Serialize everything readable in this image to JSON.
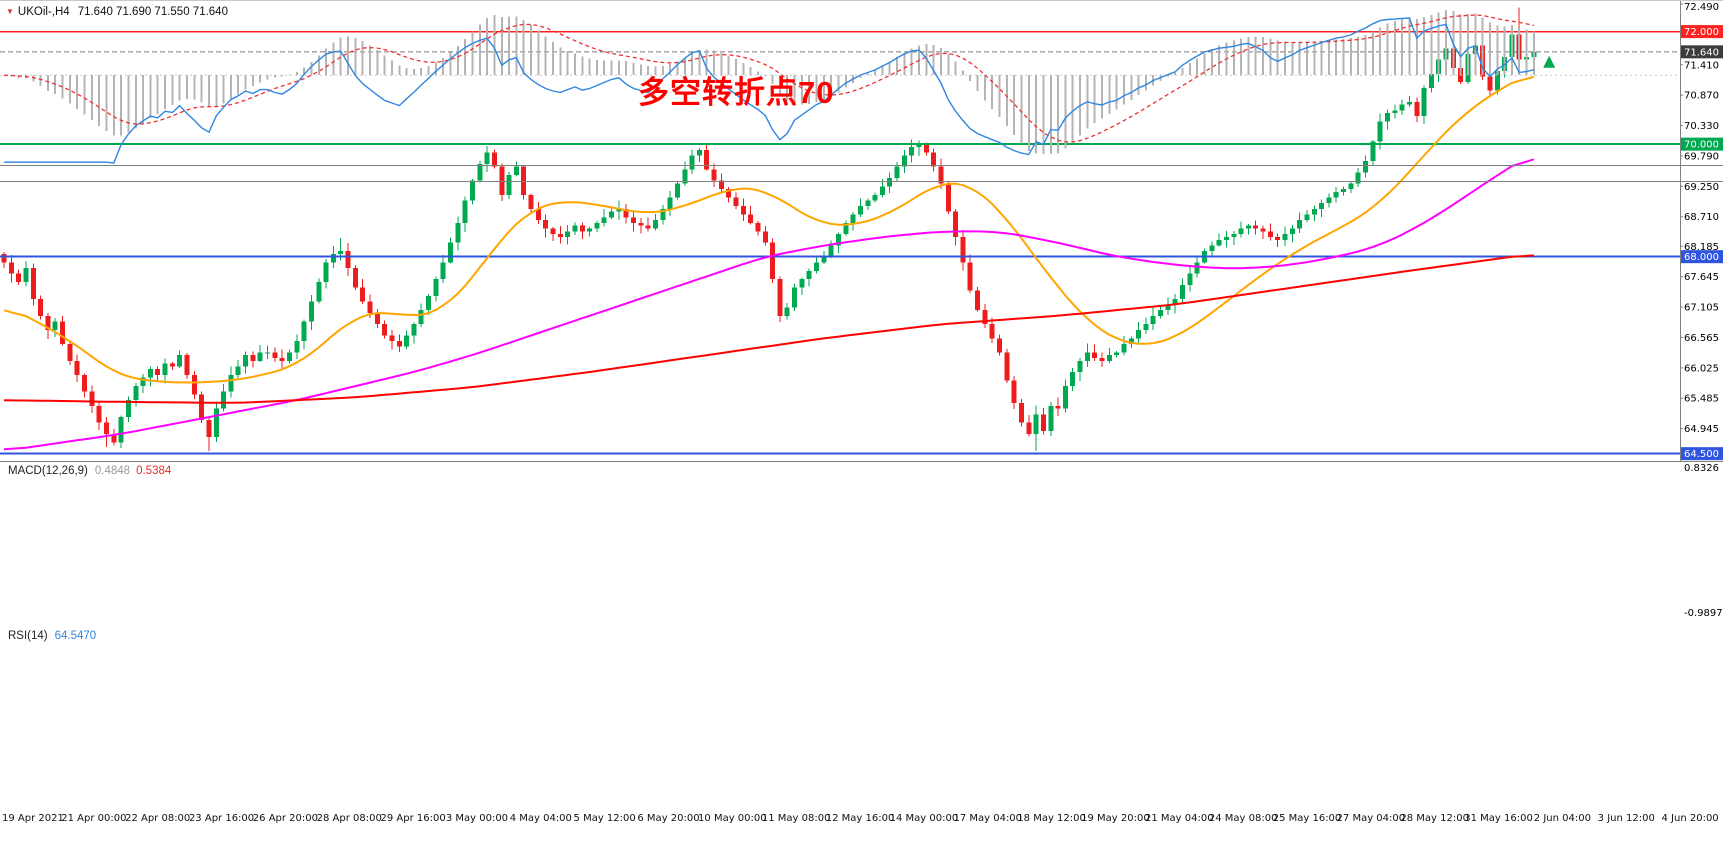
{
  "icons": {
    "header_arrow_icon": "▼"
  },
  "annotation": {
    "text": "多空转折点70",
    "color": "#FF0000"
  },
  "chart_data": {
    "type": "candlestick",
    "header": {
      "symbol_period": "UKOil-,H4",
      "ohlc": "71.640 71.690 71.550 71.640"
    },
    "price_axis": {
      "min": 64.405,
      "max": 72.49,
      "ticks": [
        "72.490",
        "71.410",
        "70.870",
        "70.330",
        "69.790",
        "69.250",
        "68.710",
        "68.185",
        "67.645",
        "67.105",
        "66.565",
        "66.025",
        "65.485",
        "64.945"
      ]
    },
    "levels": [
      {
        "label": "72.000",
        "value": 72.0,
        "color": "#ff2222",
        "width": 1.4
      },
      {
        "label": "70.000",
        "value": 70.0,
        "color": "#00a94f",
        "width": 2
      },
      {
        "label": "68.000",
        "value": 68.0,
        "color": "#2f55e0",
        "width": 2
      },
      {
        "label": "64.500",
        "value": 64.5,
        "color": "#2f55e0",
        "width": 2
      }
    ],
    "current_price": {
      "label": "71.640",
      "value": 71.64,
      "line_color": "#777777",
      "badge_color": "#3c3c3c"
    },
    "candle_colors": {
      "up": "#00a94f",
      "down": "#ee1c1c"
    },
    "first_open": 68.05,
    "closes": [
      67.9,
      67.7,
      67.55,
      67.8,
      67.25,
      66.95,
      66.7,
      66.85,
      66.45,
      66.15,
      65.9,
      65.6,
      65.35,
      65.05,
      64.85,
      64.7,
      65.15,
      65.45,
      65.7,
      65.85,
      66.0,
      65.9,
      66.1,
      66.05,
      66.25,
      65.9,
      65.55,
      65.1,
      64.8,
      65.3,
      65.6,
      65.9,
      66.05,
      66.25,
      66.15,
      66.3,
      66.3,
      66.2,
      66.15,
      66.3,
      66.5,
      66.85,
      67.2,
      67.55,
      67.9,
      68.05,
      68.1,
      67.8,
      67.45,
      67.2,
      67.0,
      66.8,
      66.6,
      66.5,
      66.4,
      66.6,
      66.8,
      67.05,
      67.3,
      67.6,
      67.9,
      68.25,
      68.6,
      69.0,
      69.35,
      69.65,
      69.85,
      69.6,
      69.1,
      69.45,
      69.6,
      69.1,
      68.85,
      68.65,
      68.5,
      68.4,
      68.35,
      68.45,
      68.55,
      68.45,
      68.5,
      68.6,
      68.7,
      68.8,
      68.85,
      68.7,
      68.6,
      68.55,
      68.5,
      68.65,
      68.85,
      69.05,
      69.3,
      69.55,
      69.8,
      69.9,
      69.55,
      69.35,
      69.2,
      69.05,
      68.9,
      68.75,
      68.6,
      68.45,
      68.25,
      67.6,
      66.95,
      67.1,
      67.45,
      67.6,
      67.75,
      67.9,
      68.0,
      68.2,
      68.4,
      68.6,
      68.75,
      68.9,
      69.0,
      69.1,
      69.25,
      69.4,
      69.6,
      69.8,
      69.95,
      70.0,
      69.85,
      69.6,
      69.3,
      68.8,
      68.35,
      67.9,
      67.4,
      67.05,
      66.8,
      66.55,
      66.3,
      65.8,
      65.4,
      65.05,
      64.85,
      65.2,
      64.9,
      65.35,
      65.3,
      65.7,
      65.95,
      66.15,
      66.3,
      66.2,
      66.15,
      66.25,
      66.3,
      66.45,
      66.55,
      66.7,
      66.8,
      66.95,
      67.05,
      67.15,
      67.25,
      67.5,
      67.7,
      67.9,
      68.1,
      68.2,
      68.3,
      68.35,
      68.4,
      68.5,
      68.55,
      68.5,
      68.45,
      68.35,
      68.3,
      68.4,
      68.5,
      68.65,
      68.75,
      68.85,
      68.95,
      69.05,
      69.15,
      69.2,
      69.3,
      69.5,
      69.7,
      70.05,
      70.4,
      70.55,
      70.6,
      70.7,
      70.75,
      70.5,
      71.0,
      71.25,
      71.5,
      71.7,
      71.35,
      71.1,
      71.6,
      71.75,
      71.2,
      70.95,
      71.3,
      71.55,
      71.95,
      71.5,
      71.55,
      71.64
    ],
    "wick_overrides": [
      {
        "i": 14,
        "low": 64.62
      },
      {
        "i": 28,
        "low": 64.55
      },
      {
        "i": 46,
        "high": 68.33
      },
      {
        "i": 66,
        "high": 69.97
      },
      {
        "i": 95,
        "high": 69.93
      },
      {
        "i": 124,
        "high": 70.08
      },
      {
        "i": 141,
        "low": 64.55
      },
      {
        "i": 207,
        "high": 72.43
      }
    ],
    "ma_lines": [
      {
        "name": "ma-fast",
        "color": "#ffa500",
        "width": 2,
        "anchors": [
          [
            0,
            67.15
          ],
          [
            8,
            66.6
          ],
          [
            16,
            65.85
          ],
          [
            24,
            65.75
          ],
          [
            32,
            65.8
          ],
          [
            40,
            66.05
          ],
          [
            44,
            66.5
          ],
          [
            48,
            66.95
          ],
          [
            52,
            67.05
          ],
          [
            56,
            66.9
          ],
          [
            60,
            67.05
          ],
          [
            64,
            67.6
          ],
          [
            68,
            68.35
          ],
          [
            72,
            68.85
          ],
          [
            76,
            69.0
          ],
          [
            80,
            68.95
          ],
          [
            84,
            68.85
          ],
          [
            88,
            68.75
          ],
          [
            92,
            68.85
          ],
          [
            96,
            69.05
          ],
          [
            100,
            69.25
          ],
          [
            104,
            69.2
          ],
          [
            108,
            68.85
          ],
          [
            112,
            68.55
          ],
          [
            116,
            68.55
          ],
          [
            120,
            68.7
          ],
          [
            124,
            69.0
          ],
          [
            128,
            69.35
          ],
          [
            132,
            69.3
          ],
          [
            136,
            68.85
          ],
          [
            140,
            68.15
          ],
          [
            144,
            67.45
          ],
          [
            148,
            66.85
          ],
          [
            152,
            66.5
          ],
          [
            156,
            66.4
          ],
          [
            160,
            66.55
          ],
          [
            164,
            66.9
          ],
          [
            168,
            67.3
          ],
          [
            172,
            67.7
          ],
          [
            176,
            68.05
          ],
          [
            180,
            68.35
          ],
          [
            184,
            68.6
          ],
          [
            188,
            68.95
          ],
          [
            192,
            69.5
          ],
          [
            196,
            70.1
          ],
          [
            200,
            70.6
          ],
          [
            204,
            70.95
          ],
          [
            209,
            71.3
          ]
        ]
      },
      {
        "name": "ma-mid",
        "color": "#ff00ff",
        "width": 2,
        "anchors": [
          [
            0,
            64.55
          ],
          [
            8,
            64.7
          ],
          [
            16,
            64.85
          ],
          [
            24,
            65.05
          ],
          [
            32,
            65.25
          ],
          [
            40,
            65.45
          ],
          [
            48,
            65.7
          ],
          [
            56,
            65.95
          ],
          [
            64,
            66.25
          ],
          [
            72,
            66.6
          ],
          [
            80,
            66.95
          ],
          [
            88,
            67.3
          ],
          [
            96,
            67.65
          ],
          [
            104,
            68.0
          ],
          [
            112,
            68.2
          ],
          [
            120,
            68.35
          ],
          [
            128,
            68.45
          ],
          [
            136,
            68.45
          ],
          [
            144,
            68.25
          ],
          [
            152,
            68.0
          ],
          [
            160,
            67.85
          ],
          [
            168,
            67.78
          ],
          [
            176,
            67.85
          ],
          [
            184,
            68.05
          ],
          [
            188,
            68.2
          ],
          [
            192,
            68.45
          ],
          [
            196,
            68.75
          ],
          [
            200,
            69.1
          ],
          [
            204,
            69.45
          ],
          [
            209,
            69.85
          ]
        ]
      },
      {
        "name": "ma-slow",
        "color": "#ff0000",
        "width": 2,
        "anchors": [
          [
            0,
            65.45
          ],
          [
            16,
            65.42
          ],
          [
            32,
            65.4
          ],
          [
            48,
            65.5
          ],
          [
            64,
            65.68
          ],
          [
            80,
            65.95
          ],
          [
            96,
            66.25
          ],
          [
            112,
            66.55
          ],
          [
            128,
            66.8
          ],
          [
            144,
            66.95
          ],
          [
            160,
            67.15
          ],
          [
            176,
            67.45
          ],
          [
            192,
            67.75
          ],
          [
            209,
            68.05
          ]
        ]
      }
    ],
    "marker": {
      "shape": "up-arrow",
      "price": 71.5,
      "color": "#00a94f"
    },
    "time_labels": [
      "19 Apr 2021",
      "21 Apr 00:00",
      "22 Apr 08:00",
      "23 Apr 16:00",
      "26 Apr 20:00",
      "28 Apr 08:00",
      "29 Apr 16:00",
      "3 May 00:00",
      "4 May 04:00",
      "5 May 12:00",
      "6 May 20:00",
      "10 May 00:00",
      "11 May 08:00",
      "12 May 16:00",
      "14 May 00:00",
      "17 May 04:00",
      "18 May 12:00",
      "19 May 20:00",
      "21 May 04:00",
      "24 May 08:00",
      "25 May 16:00",
      "27 May 04:00",
      "28 May 12:00",
      "31 May 16:00",
      "2 Jun 04:00",
      "3 Jun 12:00",
      "4 Jun 20:00"
    ],
    "macd": {
      "label": "MACD(12,26,9)",
      "main_value": "0.4848",
      "signal_value": "0.5384",
      "axis_max": "0.8326",
      "axis_min": "-0.9897",
      "fast": 12,
      "slow": 26,
      "signal_period": 9,
      "hist_color": "#b4b4b4",
      "signal_color": "#f03030"
    },
    "rsi": {
      "label": "RSI(14)",
      "value": "64.5470",
      "period": 14,
      "color": "#2f87e0"
    }
  }
}
